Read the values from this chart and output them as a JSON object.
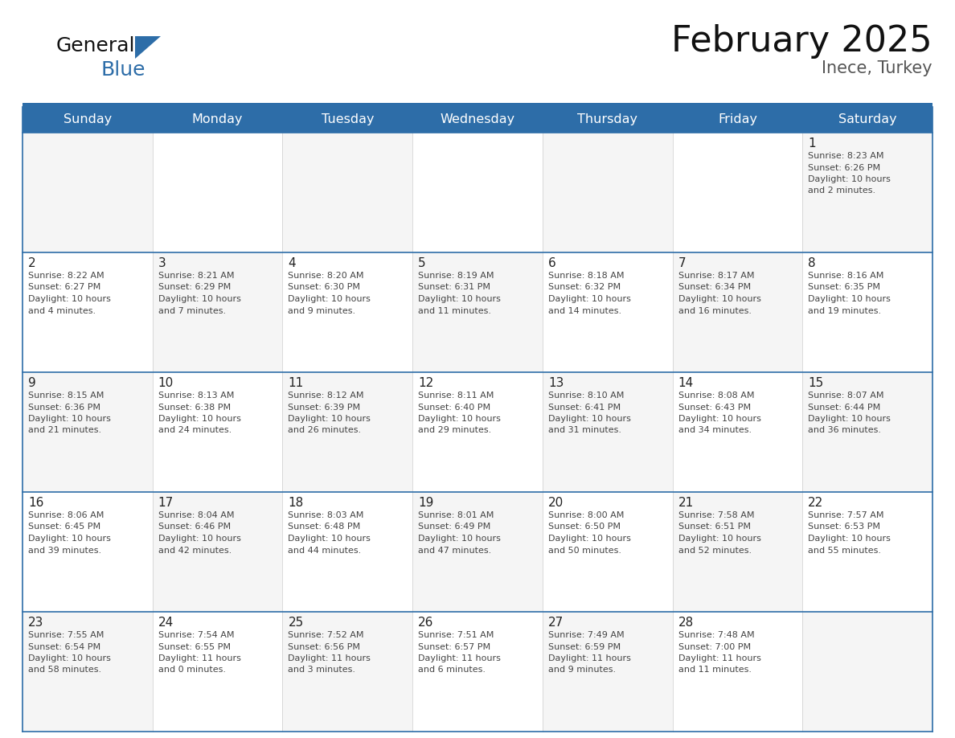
{
  "title": "February 2025",
  "subtitle": "Inece, Turkey",
  "days_of_week": [
    "Sunday",
    "Monday",
    "Tuesday",
    "Wednesday",
    "Thursday",
    "Friday",
    "Saturday"
  ],
  "header_bg": "#2D6DA8",
  "header_text_color": "#FFFFFF",
  "cell_bg": "#FFFFFF",
  "cell_bg_alt": "#F5F5F5",
  "text_color": "#444444",
  "day_num_color": "#222222",
  "line_color": "#2D6DA8",
  "sep_line_color": "#2D6DA8",
  "calendar": [
    [
      null,
      null,
      null,
      null,
      null,
      null,
      {
        "day": 1,
        "sunrise": "8:23 AM",
        "sunset": "6:26 PM",
        "daylight": "10 hours and 2 minutes."
      }
    ],
    [
      {
        "day": 2,
        "sunrise": "8:22 AM",
        "sunset": "6:27 PM",
        "daylight": "10 hours and 4 minutes."
      },
      {
        "day": 3,
        "sunrise": "8:21 AM",
        "sunset": "6:29 PM",
        "daylight": "10 hours and 7 minutes."
      },
      {
        "day": 4,
        "sunrise": "8:20 AM",
        "sunset": "6:30 PM",
        "daylight": "10 hours and 9 minutes."
      },
      {
        "day": 5,
        "sunrise": "8:19 AM",
        "sunset": "6:31 PM",
        "daylight": "10 hours and 11 minutes."
      },
      {
        "day": 6,
        "sunrise": "8:18 AM",
        "sunset": "6:32 PM",
        "daylight": "10 hours and 14 minutes."
      },
      {
        "day": 7,
        "sunrise": "8:17 AM",
        "sunset": "6:34 PM",
        "daylight": "10 hours and 16 minutes."
      },
      {
        "day": 8,
        "sunrise": "8:16 AM",
        "sunset": "6:35 PM",
        "daylight": "10 hours and 19 minutes."
      }
    ],
    [
      {
        "day": 9,
        "sunrise": "8:15 AM",
        "sunset": "6:36 PM",
        "daylight": "10 hours and 21 minutes."
      },
      {
        "day": 10,
        "sunrise": "8:13 AM",
        "sunset": "6:38 PM",
        "daylight": "10 hours and 24 minutes."
      },
      {
        "day": 11,
        "sunrise": "8:12 AM",
        "sunset": "6:39 PM",
        "daylight": "10 hours and 26 minutes."
      },
      {
        "day": 12,
        "sunrise": "8:11 AM",
        "sunset": "6:40 PM",
        "daylight": "10 hours and 29 minutes."
      },
      {
        "day": 13,
        "sunrise": "8:10 AM",
        "sunset": "6:41 PM",
        "daylight": "10 hours and 31 minutes."
      },
      {
        "day": 14,
        "sunrise": "8:08 AM",
        "sunset": "6:43 PM",
        "daylight": "10 hours and 34 minutes."
      },
      {
        "day": 15,
        "sunrise": "8:07 AM",
        "sunset": "6:44 PM",
        "daylight": "10 hours and 36 minutes."
      }
    ],
    [
      {
        "day": 16,
        "sunrise": "8:06 AM",
        "sunset": "6:45 PM",
        "daylight": "10 hours and 39 minutes."
      },
      {
        "day": 17,
        "sunrise": "8:04 AM",
        "sunset": "6:46 PM",
        "daylight": "10 hours and 42 minutes."
      },
      {
        "day": 18,
        "sunrise": "8:03 AM",
        "sunset": "6:48 PM",
        "daylight": "10 hours and 44 minutes."
      },
      {
        "day": 19,
        "sunrise": "8:01 AM",
        "sunset": "6:49 PM",
        "daylight": "10 hours and 47 minutes."
      },
      {
        "day": 20,
        "sunrise": "8:00 AM",
        "sunset": "6:50 PM",
        "daylight": "10 hours and 50 minutes."
      },
      {
        "day": 21,
        "sunrise": "7:58 AM",
        "sunset": "6:51 PM",
        "daylight": "10 hours and 52 minutes."
      },
      {
        "day": 22,
        "sunrise": "7:57 AM",
        "sunset": "6:53 PM",
        "daylight": "10 hours and 55 minutes."
      }
    ],
    [
      {
        "day": 23,
        "sunrise": "7:55 AM",
        "sunset": "6:54 PM",
        "daylight": "10 hours and 58 minutes."
      },
      {
        "day": 24,
        "sunrise": "7:54 AM",
        "sunset": "6:55 PM",
        "daylight": "11 hours and 0 minutes."
      },
      {
        "day": 25,
        "sunrise": "7:52 AM",
        "sunset": "6:56 PM",
        "daylight": "11 hours and 3 minutes."
      },
      {
        "day": 26,
        "sunrise": "7:51 AM",
        "sunset": "6:57 PM",
        "daylight": "11 hours and 6 minutes."
      },
      {
        "day": 27,
        "sunrise": "7:49 AM",
        "sunset": "6:59 PM",
        "daylight": "11 hours and 9 minutes."
      },
      {
        "day": 28,
        "sunrise": "7:48 AM",
        "sunset": "7:00 PM",
        "daylight": "11 hours and 11 minutes."
      },
      null
    ]
  ],
  "logo_text1": "General",
  "logo_text2": "Blue",
  "logo_text1_color": "#111111",
  "logo_text2_color": "#2D6DA8",
  "logo_triangle_color": "#2D6DA8",
  "title_fontsize": 32,
  "subtitle_fontsize": 15,
  "header_fontsize": 11.5,
  "day_num_fontsize": 11,
  "cell_text_fontsize": 8
}
